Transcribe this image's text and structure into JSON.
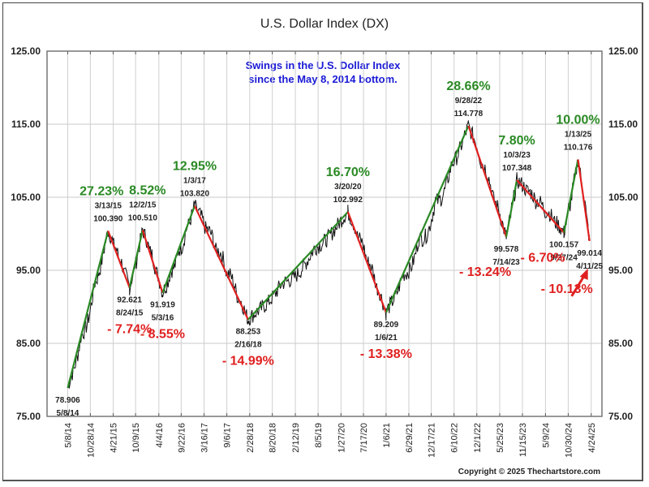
{
  "chart_data": {
    "type": "line",
    "title": "U.S. Dollar Index (DX)",
    "subtitle": [
      "Swings in the U.S. Dollar Index",
      "since the May 8, 2014 bottom."
    ],
    "xlabel": "",
    "ylabel": "",
    "ylim": [
      75,
      125
    ],
    "xlim": [
      "2013-12-01",
      "2025-07-15"
    ],
    "yticks": [
      "75.00",
      "85.00",
      "95.00",
      "105.00",
      "115.00",
      "125.00"
    ],
    "ytick_values": [
      75,
      85,
      95,
      105,
      115,
      125
    ],
    "xticks": [
      "5/8/14",
      "10/28/14",
      "4/21/15",
      "10/9/15",
      "4/4/16",
      "9/22/16",
      "3/16/17",
      "9/6/17",
      "2/28/18",
      "8/20/18",
      "2/12/19",
      "8/5/19",
      "1/27/20",
      "7/17/20",
      "1/6/21",
      "6/29/21",
      "12/17/21",
      "6/10/22",
      "12/1/22",
      "5/25/23",
      "11/15/23",
      "5/9/24",
      "10/30/24",
      "4/24/25"
    ],
    "grid": true,
    "legend": "none",
    "swing_points": [
      {
        "date": "5/8/14",
        "value": 78.906,
        "type": "low"
      },
      {
        "date": "3/13/15",
        "value": 100.39,
        "type": "high"
      },
      {
        "date": "8/24/15",
        "value": 92.621,
        "type": "low"
      },
      {
        "date": "12/2/15",
        "value": 100.51,
        "type": "high"
      },
      {
        "date": "5/3/16",
        "value": 91.919,
        "type": "low"
      },
      {
        "date": "1/3/17",
        "value": 103.82,
        "type": "high"
      },
      {
        "date": "2/16/18",
        "value": 88.253,
        "type": "low"
      },
      {
        "date": "3/20/20",
        "value": 102.992,
        "type": "high"
      },
      {
        "date": "1/6/21",
        "value": 89.209,
        "type": "low"
      },
      {
        "date": "9/28/22",
        "value": 114.778,
        "type": "high"
      },
      {
        "date": "7/14/23",
        "value": 99.578,
        "type": "low"
      },
      {
        "date": "10/3/23",
        "value": 107.348,
        "type": "high"
      },
      {
        "date": "9/27/24",
        "value": 100.157,
        "type": "low"
      },
      {
        "date": "1/13/25",
        "value": 110.176,
        "type": "high"
      },
      {
        "date": "4/11/25",
        "value": 99.014,
        "type": "low"
      }
    ],
    "swing_changes": [
      {
        "label": "27.23%",
        "direction": "up"
      },
      {
        "label": "- 7.74%",
        "direction": "down"
      },
      {
        "label": "8.52%",
        "direction": "up"
      },
      {
        "label": "- 8.55%",
        "direction": "down"
      },
      {
        "label": "12.95%",
        "direction": "up"
      },
      {
        "label": "- 14.99%",
        "direction": "down"
      },
      {
        "label": "16.70%",
        "direction": "up"
      },
      {
        "label": "- 13.38%",
        "direction": "down"
      },
      {
        "label": "28.66%",
        "direction": "up"
      },
      {
        "label": "- 13.24%",
        "direction": "down"
      },
      {
        "label": "7.80%",
        "direction": "up"
      },
      {
        "label": "- 6.70%",
        "direction": "down"
      },
      {
        "label": "10.00%",
        "direction": "up"
      },
      {
        "label": "- 10.13%",
        "direction": "down"
      }
    ],
    "colors": {
      "up": "#2a8a24",
      "down": "#e02020",
      "price": "#111111",
      "subtitle": "#1a1ad6"
    }
  },
  "copyright": "Copyright © 2025 Thechartstore.com"
}
